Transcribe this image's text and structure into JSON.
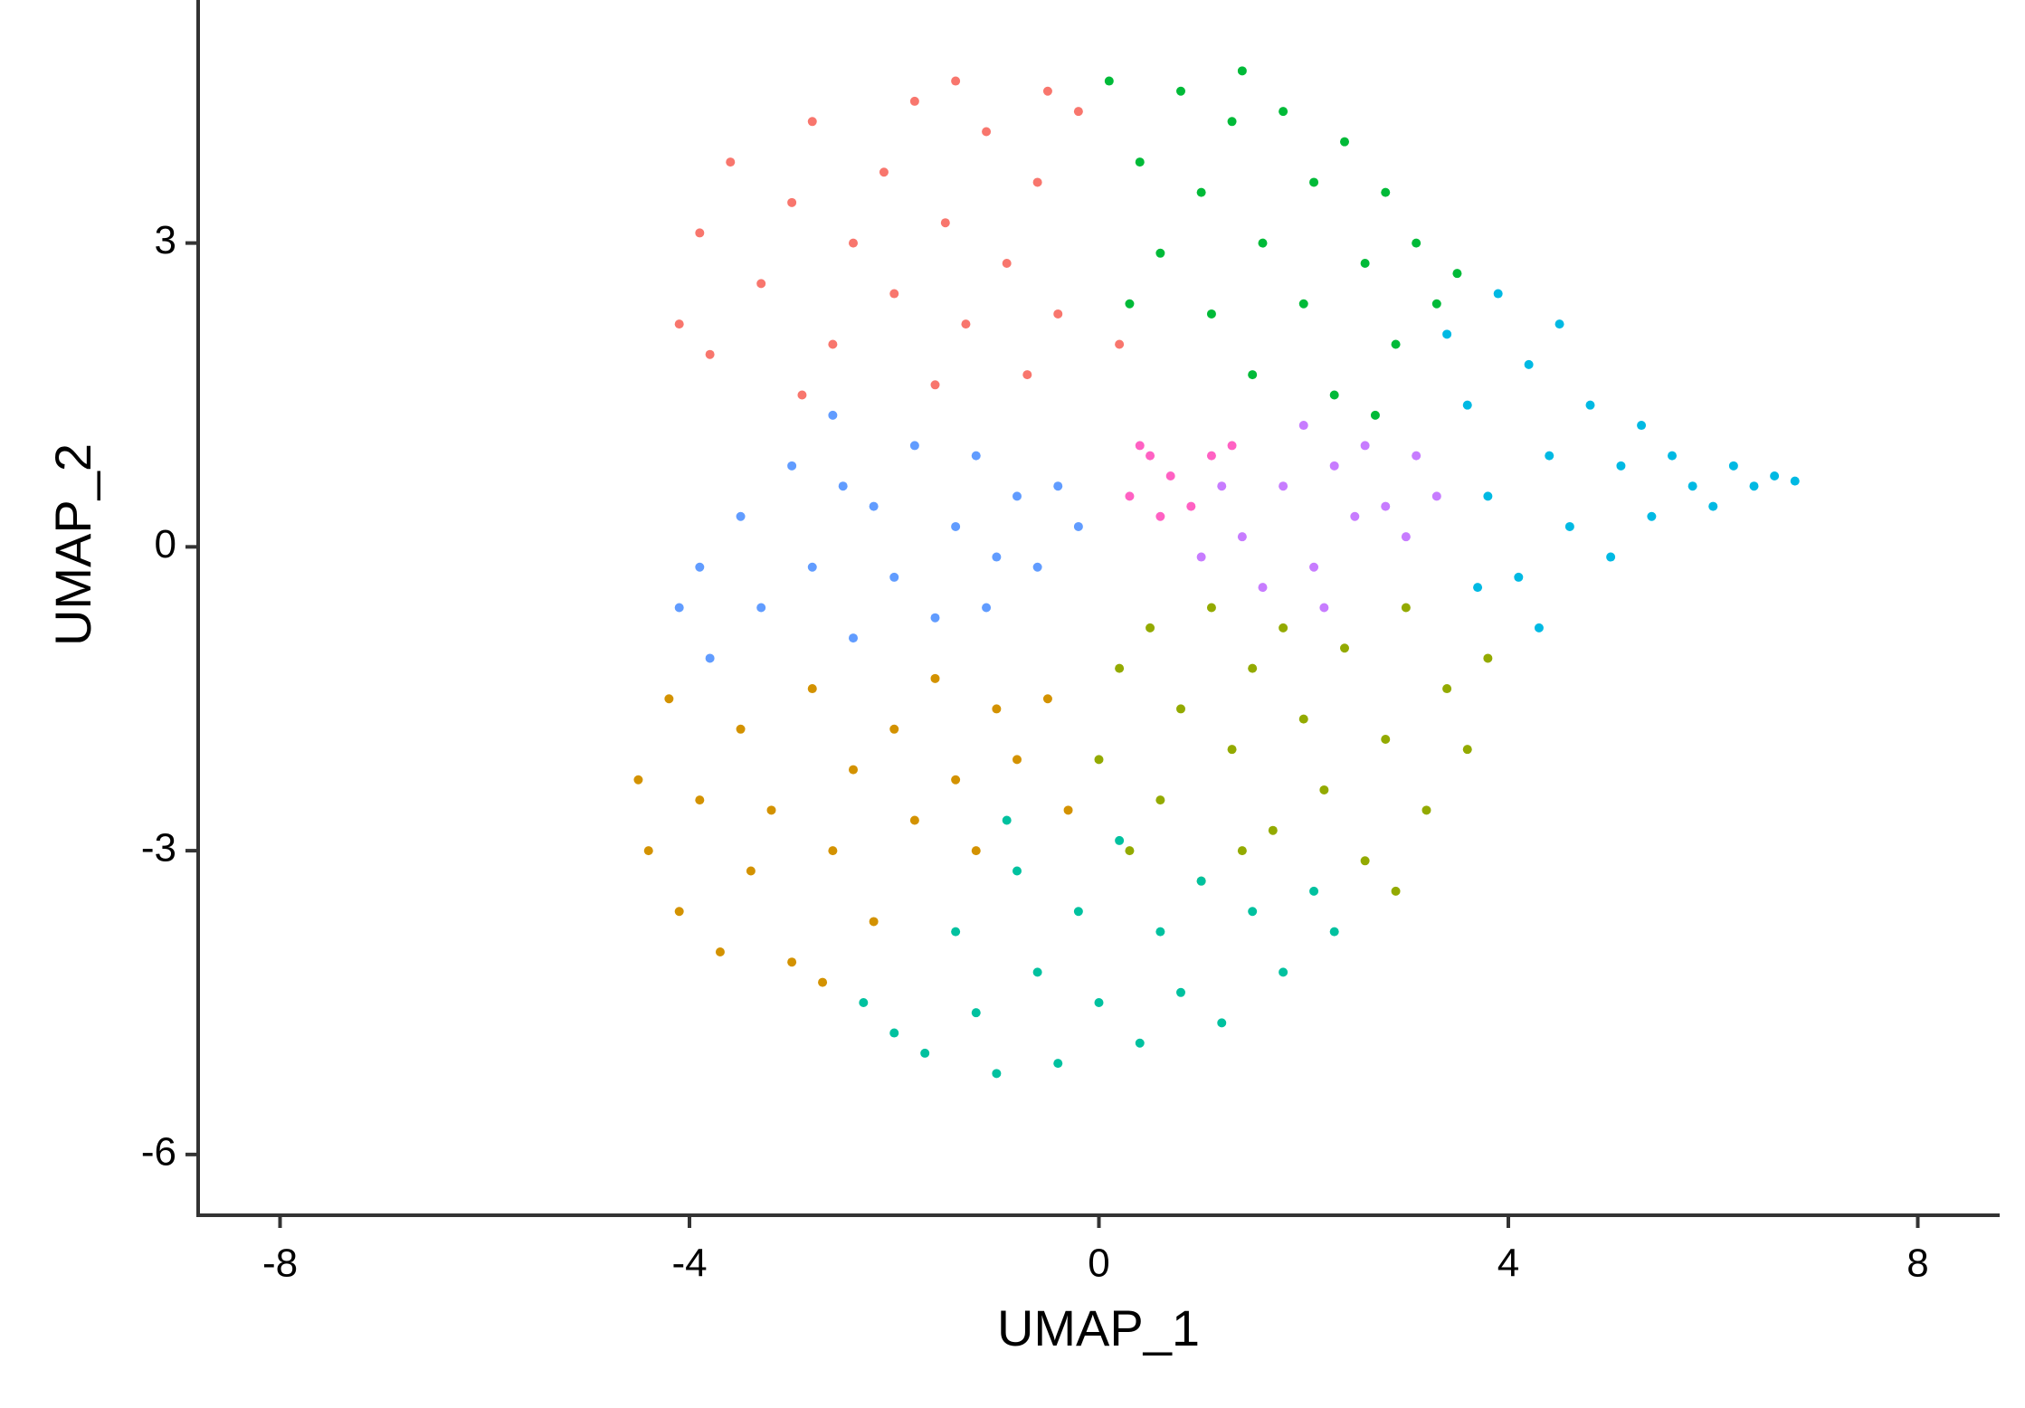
{
  "chart_data": {
    "type": "scatter",
    "x_label": "UMAP_1",
    "y_label": "UMAP_2",
    "xlim": [
      -8.8,
      8.8
    ],
    "ylim": [
      -6.6,
      5.4
    ],
    "xticks": [
      -8,
      -4,
      0,
      4,
      8
    ],
    "yticks": [
      -6,
      -3,
      0,
      3
    ],
    "grid": false,
    "series": [
      {
        "color": "#F8766D",
        "x": [
          -4.1,
          -3.9,
          -3.6,
          -3.3,
          -3.0,
          -2.8,
          -2.6,
          -2.4,
          -2.1,
          -2.0,
          -1.8,
          -1.6,
          -1.5,
          -1.3,
          -1.1,
          -0.9,
          -0.7,
          -0.6,
          -0.4,
          -0.2,
          0.2,
          -3.8,
          -2.9,
          -1.4,
          -0.5
        ],
        "y": [
          2.2,
          3.1,
          3.8,
          2.6,
          3.4,
          4.2,
          2.0,
          3.0,
          3.7,
          2.5,
          4.4,
          1.6,
          3.2,
          2.2,
          4.1,
          2.8,
          1.7,
          3.6,
          2.3,
          4.3,
          2.0,
          1.9,
          1.5,
          4.6,
          4.5
        ]
      },
      {
        "color": "#D39200",
        "x": [
          -4.5,
          -4.4,
          -4.2,
          -4.1,
          -3.9,
          -3.7,
          -3.5,
          -3.4,
          -3.2,
          -3.0,
          -2.8,
          -2.6,
          -2.4,
          -2.2,
          -2.0,
          -1.8,
          -1.6,
          -1.4,
          -1.2,
          -1.0,
          -0.8,
          -0.5,
          -0.3,
          -2.7
        ],
        "y": [
          -2.3,
          -3.0,
          -1.5,
          -3.6,
          -2.5,
          -4.0,
          -1.8,
          -3.2,
          -2.6,
          -4.1,
          -1.4,
          -3.0,
          -2.2,
          -3.7,
          -1.8,
          -2.7,
          -1.3,
          -2.3,
          -3.0,
          -1.6,
          -2.1,
          -1.5,
          -2.6,
          -4.3
        ]
      },
      {
        "color": "#93AA00",
        "x": [
          0.0,
          0.2,
          0.3,
          0.5,
          0.6,
          0.8,
          1.0,
          1.1,
          1.3,
          1.5,
          1.7,
          1.8,
          2.0,
          2.2,
          2.4,
          2.6,
          2.8,
          3.0,
          3.2,
          3.4,
          3.6,
          3.8,
          2.9,
          1.4
        ],
        "y": [
          -2.1,
          -1.2,
          -3.0,
          -0.8,
          -2.5,
          -1.6,
          -3.3,
          -0.6,
          -2.0,
          -1.2,
          -2.8,
          -0.8,
          -1.7,
          -2.4,
          -1.0,
          -3.1,
          -1.9,
          -0.6,
          -2.6,
          -1.4,
          -2.0,
          -1.1,
          -3.4,
          -3.0
        ]
      },
      {
        "color": "#00BA38",
        "x": [
          0.1,
          0.4,
          0.6,
          0.8,
          1.0,
          1.1,
          1.3,
          1.5,
          1.6,
          1.8,
          2.0,
          2.1,
          2.3,
          2.4,
          2.6,
          2.8,
          2.9,
          3.1,
          3.3,
          3.5,
          0.3,
          1.4,
          2.7
        ],
        "y": [
          4.6,
          3.8,
          2.9,
          4.5,
          3.5,
          2.3,
          4.2,
          1.7,
          3.0,
          4.3,
          2.4,
          3.6,
          1.5,
          4.0,
          2.8,
          3.5,
          2.0,
          3.0,
          2.4,
          2.7,
          2.4,
          4.7,
          1.3
        ]
      },
      {
        "color": "#00C19F",
        "x": [
          -2.3,
          -2.0,
          -1.7,
          -1.4,
          -1.2,
          -1.0,
          -0.8,
          -0.6,
          -0.4,
          -0.2,
          0.0,
          0.2,
          0.4,
          0.6,
          0.8,
          1.0,
          1.2,
          1.5,
          1.8,
          2.1,
          2.3,
          -0.9
        ],
        "y": [
          -4.5,
          -4.8,
          -5.0,
          -3.8,
          -4.6,
          -5.2,
          -3.2,
          -4.2,
          -5.1,
          -3.6,
          -4.5,
          -2.9,
          -4.9,
          -3.8,
          -4.4,
          -3.3,
          -4.7,
          -3.6,
          -4.2,
          -3.4,
          -3.8,
          -2.7
        ]
      },
      {
        "color": "#00B9E3",
        "x": [
          3.4,
          3.6,
          3.8,
          3.9,
          4.1,
          4.2,
          4.4,
          4.5,
          4.6,
          4.8,
          5.0,
          5.1,
          5.3,
          5.4,
          5.6,
          5.8,
          6.0,
          6.2,
          6.4,
          6.6,
          6.8,
          4.3,
          3.7
        ],
        "y": [
          2.1,
          1.4,
          0.5,
          2.5,
          -0.3,
          1.8,
          0.9,
          2.2,
          0.2,
          1.4,
          -0.1,
          0.8,
          1.2,
          0.3,
          0.9,
          0.6,
          0.4,
          0.8,
          0.6,
          0.7,
          0.65,
          -0.8,
          -0.4
        ]
      },
      {
        "color": "#619CFF",
        "x": [
          -4.1,
          -3.8,
          -3.5,
          -3.3,
          -3.0,
          -2.8,
          -2.6,
          -2.4,
          -2.2,
          -2.0,
          -1.8,
          -1.6,
          -1.4,
          -1.2,
          -1.0,
          -0.8,
          -0.6,
          -0.4,
          -0.2,
          -3.9,
          -2.5,
          -1.1
        ],
        "y": [
          -0.6,
          -1.1,
          0.3,
          -0.6,
          0.8,
          -0.2,
          1.3,
          -0.9,
          0.4,
          -0.3,
          1.0,
          -0.7,
          0.2,
          0.9,
          -0.1,
          0.5,
          -0.2,
          0.6,
          0.2,
          -0.2,
          0.6,
          -0.6
        ]
      },
      {
        "color": "#C77CFF",
        "x": [
          1.0,
          1.4,
          1.6,
          1.8,
          2.0,
          2.1,
          2.3,
          2.5,
          2.6,
          2.8,
          3.0,
          3.1,
          3.3,
          2.2,
          1.2
        ],
        "y": [
          -0.1,
          0.1,
          -0.4,
          0.6,
          1.2,
          -0.2,
          0.8,
          0.3,
          1.0,
          0.4,
          0.1,
          0.9,
          0.5,
          -0.6,
          0.6
        ]
      },
      {
        "color": "#FF61C3",
        "x": [
          0.3,
          0.5,
          0.7,
          0.9,
          1.1,
          0.6,
          1.3,
          0.4
        ],
        "y": [
          0.5,
          0.9,
          0.7,
          0.4,
          0.9,
          0.3,
          1.0,
          1.0
        ]
      }
    ]
  }
}
